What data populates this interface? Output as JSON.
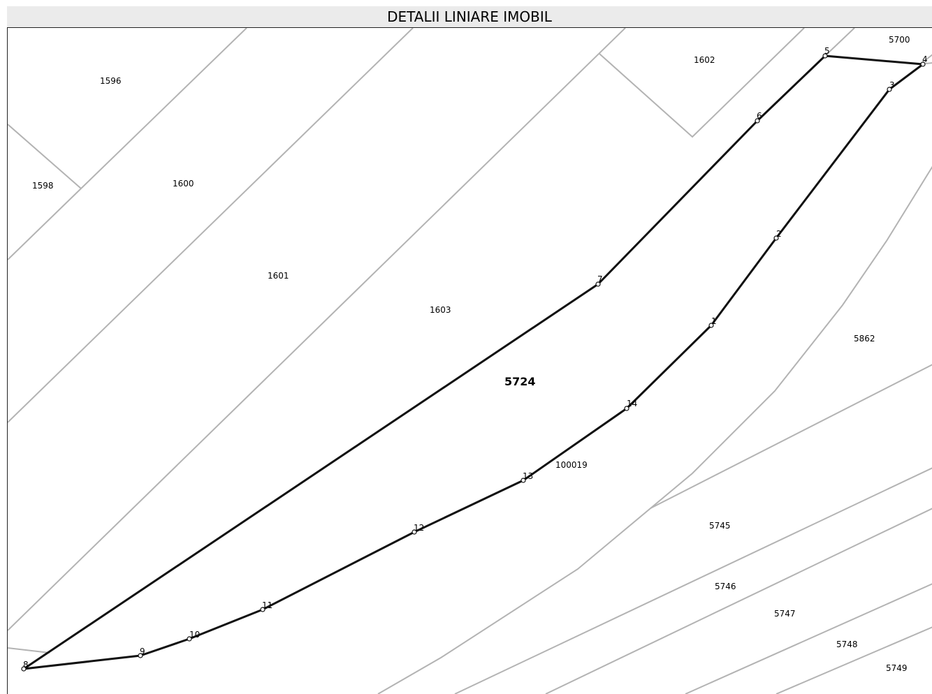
{
  "header": {
    "title": "DETALII LINIARE IMOBIL"
  },
  "map": {
    "main_parcel": "5724",
    "secondary_label": "100019",
    "parcels": [
      "1596",
      "1598",
      "1600",
      "1601",
      "1603",
      "1602",
      "5700",
      "5862",
      "5745",
      "5746",
      "5747",
      "5748",
      "5749"
    ],
    "vertices": [
      "1",
      "2",
      "3",
      "4",
      "5",
      "6",
      "7",
      "8",
      "9",
      "10",
      "11",
      "12",
      "13",
      "14"
    ]
  },
  "colors": {
    "boundary": "#b3b3b3",
    "plot_outline": "#111111",
    "header_bg": "#ebebeb"
  }
}
